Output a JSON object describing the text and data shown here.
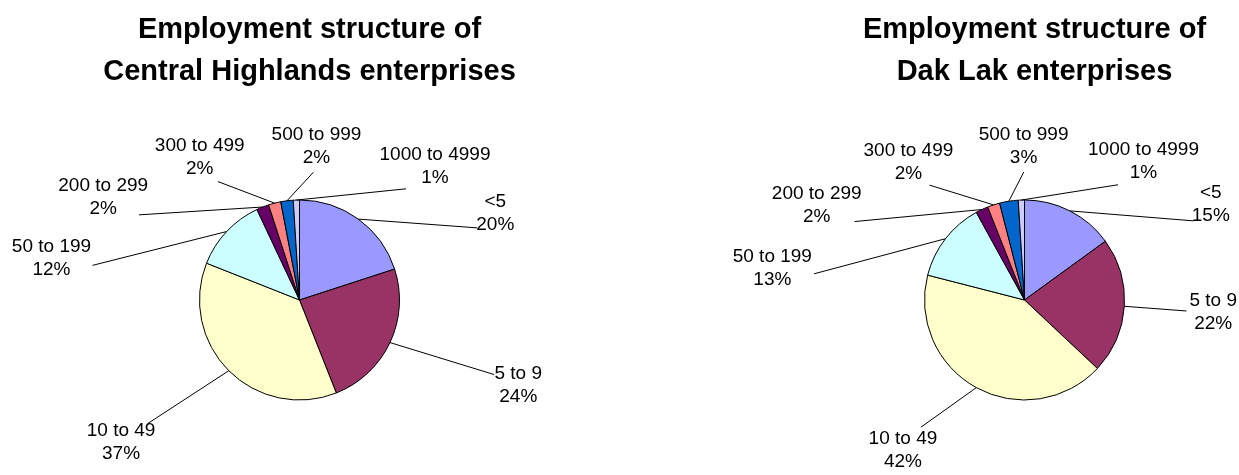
{
  "chart_data": [
    {
      "type": "pie",
      "title": "Employment structure of\nCentral Highlands enterprises",
      "categories": [
        "<5",
        "5 to 9",
        "10 to 49",
        "50 to 199",
        "200 to 299",
        "300 to 499",
        "500 to 999",
        "1000 to 4999"
      ],
      "values": [
        20,
        24,
        37,
        12,
        2,
        2,
        2,
        1
      ],
      "value_labels": [
        "20%",
        "24%",
        "37%",
        "12%",
        "2%",
        "2%",
        "2%",
        "1%"
      ],
      "colors": [
        "#9999ff",
        "#993366",
        "#ffffcc",
        "#ccffff",
        "#660066",
        "#ff8080",
        "#0066cc",
        "#ccccff"
      ]
    },
    {
      "type": "pie",
      "title": "Employment structure of\nDak Lak enterprises",
      "categories": [
        "<5",
        "5 to 9",
        "10 to 49",
        "50 to 199",
        "200 to 299",
        "300 to 499",
        "500 to 999",
        "1000 to 4999"
      ],
      "values": [
        15,
        22,
        42,
        13,
        2,
        2,
        3,
        1
      ],
      "value_labels": [
        "15%",
        "22%",
        "42%",
        "13%",
        "2%",
        "2%",
        "3%",
        "1%"
      ],
      "colors": [
        "#9999ff",
        "#993366",
        "#ffffcc",
        "#ccffff",
        "#660066",
        "#ff8080",
        "#0066cc",
        "#ccccff"
      ]
    }
  ]
}
